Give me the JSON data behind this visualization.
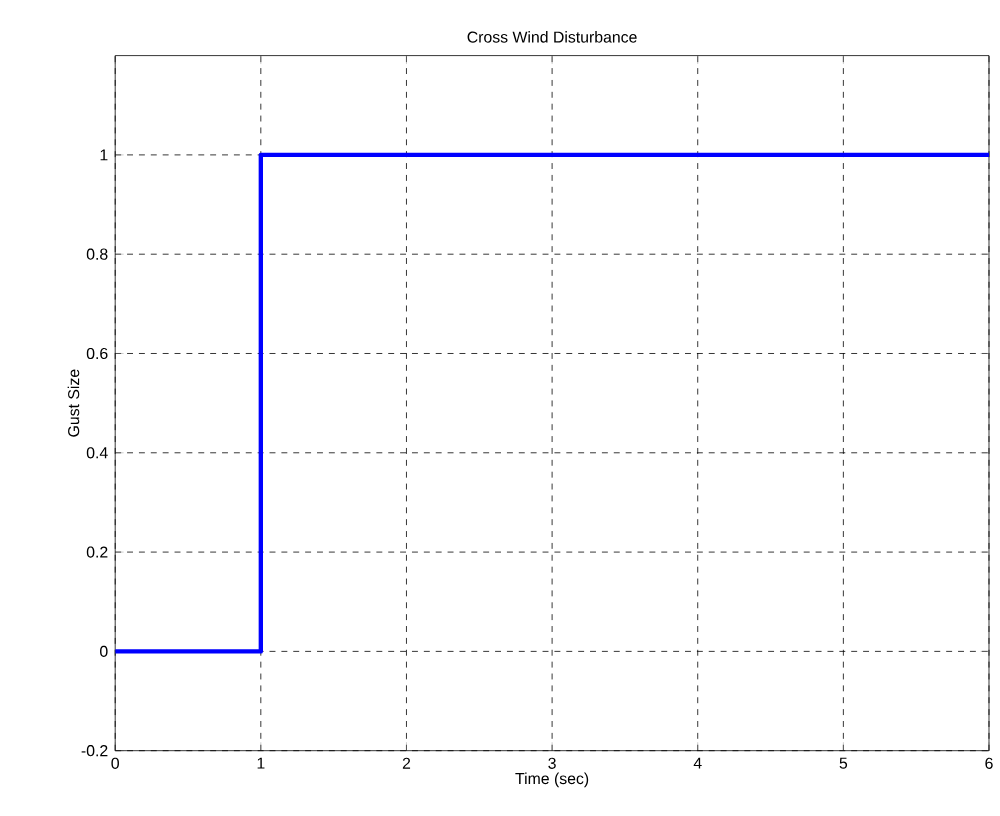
{
  "chart_data": {
    "type": "step",
    "title": "Cross Wind Disturbance",
    "xlabel": "Time (sec)",
    "ylabel": "Gust Size",
    "x": [
      0,
      1,
      6
    ],
    "values": [
      0,
      1,
      1
    ],
    "color": "#0000ff",
    "xlim": [
      0,
      6
    ],
    "ylim": [
      -0.2,
      1.2
    ],
    "xticks": [
      0,
      1,
      2,
      3,
      4,
      5,
      6
    ],
    "yticks": [
      -0.2,
      0,
      0.2,
      0.4,
      0.6,
      0.8,
      1
    ],
    "grid": true,
    "line_style": "solid",
    "marker": "none"
  }
}
